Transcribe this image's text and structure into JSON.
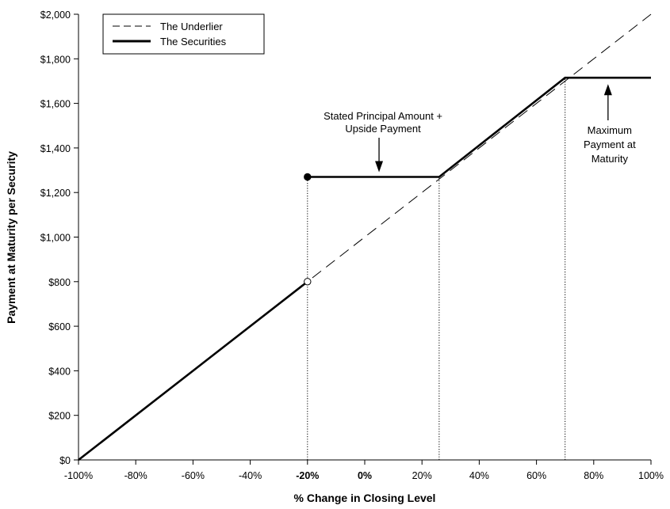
{
  "chart_data": {
    "type": "line",
    "xlabel": "% Change in Closing Level",
    "ylabel": "Payment at Maturity per Security",
    "xlim": [
      -100,
      100
    ],
    "ylim": [
      0,
      2000
    ],
    "x_ticks": [
      {
        "value": -100,
        "label": "-100%",
        "bold": false
      },
      {
        "value": -80,
        "label": "-80%",
        "bold": false
      },
      {
        "value": -60,
        "label": "-60%",
        "bold": false
      },
      {
        "value": -40,
        "label": "-40%",
        "bold": false
      },
      {
        "value": -20,
        "label": "-20%",
        "bold": true
      },
      {
        "value": 0,
        "label": "0%",
        "bold": true
      },
      {
        "value": 20,
        "label": "20%",
        "bold": false
      },
      {
        "value": 40,
        "label": "40%",
        "bold": false
      },
      {
        "value": 60,
        "label": "60%",
        "bold": false
      },
      {
        "value": 80,
        "label": "80%",
        "bold": false
      },
      {
        "value": 100,
        "label": "100%",
        "bold": false
      }
    ],
    "y_ticks": [
      {
        "value": 0,
        "label": "$0"
      },
      {
        "value": 200,
        "label": "$200"
      },
      {
        "value": 400,
        "label": "$400"
      },
      {
        "value": 600,
        "label": "$600"
      },
      {
        "value": 800,
        "label": "$800"
      },
      {
        "value": 1000,
        "label": "$1,000"
      },
      {
        "value": 1200,
        "label": "$1,200"
      },
      {
        "value": 1400,
        "label": "$1,400"
      },
      {
        "value": 1600,
        "label": "$1,600"
      },
      {
        "value": 1800,
        "label": "$1,800"
      },
      {
        "value": 2000,
        "label": "$2,000"
      }
    ],
    "series": [
      {
        "name": "The Underlier",
        "style": "dashed",
        "points": [
          [
            -100,
            0
          ],
          [
            100,
            2000
          ]
        ]
      },
      {
        "name": "The Securities",
        "style": "solid",
        "segments": [
          [
            [
              -100,
              0
            ],
            [
              -20,
              800
            ]
          ],
          [
            [
              -20,
              1270
            ],
            [
              26,
              1270
            ],
            [
              70,
              1715
            ],
            [
              100,
              1715
            ]
          ]
        ]
      }
    ],
    "markers": [
      {
        "x": -20,
        "y": 1270,
        "fill": "filled"
      },
      {
        "x": -20,
        "y": 800,
        "fill": "open"
      }
    ],
    "reference_lines": [
      {
        "x": -20,
        "y_top": 1270
      },
      {
        "x": 26,
        "y_top": 1270
      },
      {
        "x": 70,
        "y_top": 1715
      }
    ],
    "annotations": [
      {
        "lines": [
          "Stated Principal Amount +",
          "Upside Payment"
        ],
        "arrow_to": [
          5,
          1270
        ]
      },
      {
        "lines": [
          "Maximum",
          "Payment at",
          "Maturity"
        ],
        "arrow_to": [
          85,
          1715
        ]
      }
    ],
    "legend": {
      "position": "top-left"
    },
    "colors": {
      "line": "#000000",
      "background": "#ffffff"
    }
  }
}
